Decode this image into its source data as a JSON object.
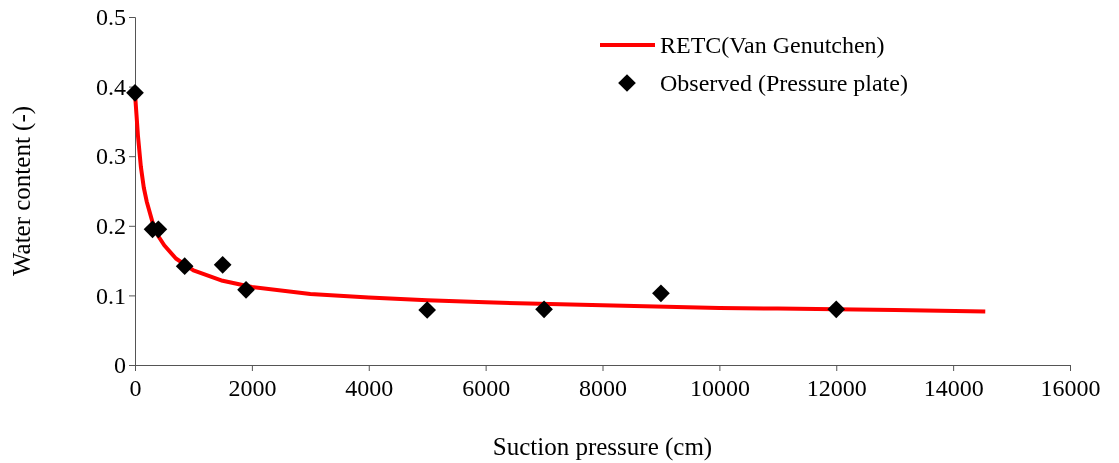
{
  "chart_data": {
    "type": "line",
    "xlabel": "Suction pressure (cm)",
    "ylabel": "Water content (-)",
    "xlim": [
      0,
      16000
    ],
    "xticks": [
      0,
      2000,
      4000,
      6000,
      8000,
      10000,
      12000,
      14000,
      16000
    ],
    "ylim": [
      0,
      0.5
    ],
    "yticks": [
      0,
      0.1,
      0.2,
      0.3,
      0.4,
      0.5
    ],
    "grid": false,
    "legend": "top right",
    "series": [
      {
        "name": "RETC(Van Genutchen)",
        "color": "#ff0000",
        "marker": "none",
        "line_style": "solid",
        "x": [
          0,
          25,
          50,
          100,
          150,
          200,
          300,
          400,
          500,
          700,
          1000,
          1500,
          2000,
          3000,
          4000,
          5000,
          6000,
          8000,
          10000,
          11000,
          13000,
          14550
        ],
        "values": [
          0.39,
          0.36,
          0.33,
          0.285,
          0.255,
          0.235,
          0.205,
          0.185,
          0.172,
          0.153,
          0.136,
          0.121,
          0.112,
          0.102,
          0.097,
          0.093,
          0.09,
          0.086,
          0.082,
          0.081,
          0.079,
          0.077
        ]
      },
      {
        "name": "Observed (Pressure plate)",
        "type": "scatter",
        "color": "#000000",
        "marker": "diamond",
        "x": [
          0,
          300,
          400,
          850,
          1500,
          1900,
          5000,
          7000,
          9000,
          12000
        ],
        "values": [
          0.391,
          0.195,
          0.195,
          0.142,
          0.144,
          0.108,
          0.079,
          0.08,
          0.103,
          0.08
        ]
      }
    ]
  }
}
